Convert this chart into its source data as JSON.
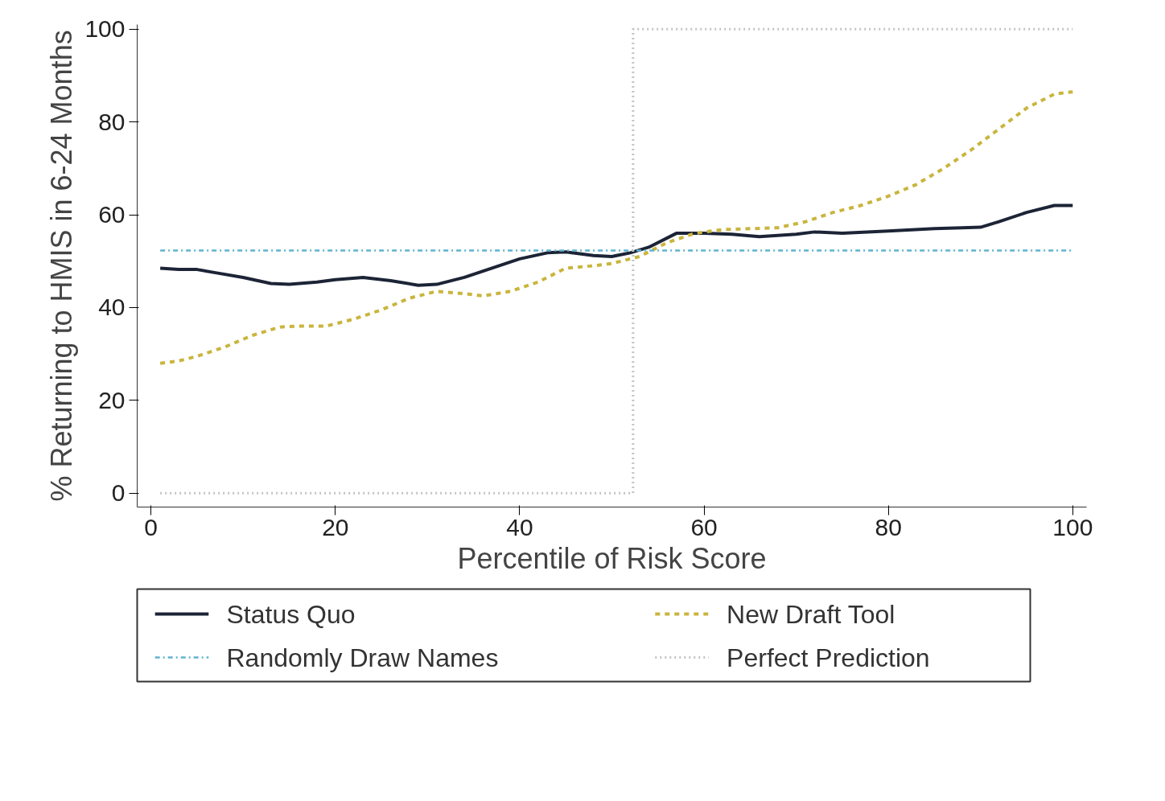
{
  "chart_data": {
    "type": "line",
    "xlabel": "Percentile of Risk Score",
    "ylabel": "% Returning to HMIS in 6-24 Months",
    "xlim": [
      -1.5,
      101.5
    ],
    "ylim": [
      -3,
      101
    ],
    "xticks": [
      0,
      20,
      40,
      60,
      80,
      100
    ],
    "yticks": [
      0,
      20,
      40,
      60,
      80,
      100
    ],
    "grid": false,
    "legend": "bottom",
    "marker": "none",
    "series": [
      {
        "name": "Status Quo",
        "color": "#1c2436",
        "line_style": "solid",
        "x": [
          1,
          3,
          5,
          7,
          10,
          13,
          15,
          18,
          20,
          23,
          26,
          29,
          31,
          34,
          37,
          40,
          43,
          45,
          48,
          50,
          52,
          54,
          57,
          60,
          63,
          66,
          70,
          72,
          75,
          80,
          85,
          88,
          90,
          92,
          95,
          98,
          100
        ],
        "values": [
          48.5,
          48.2,
          48.2,
          47.5,
          46.5,
          45.2,
          45,
          45.5,
          46,
          46.5,
          45.8,
          44.8,
          45,
          46.5,
          48.5,
          50.5,
          51.8,
          52,
          51.2,
          51,
          51.8,
          53,
          56,
          56,
          55.8,
          55.3,
          55.8,
          56.3,
          56,
          56.5,
          57,
          57.2,
          57.3,
          58.5,
          60.5,
          62,
          62
        ]
      },
      {
        "name": "New Draft Tool",
        "color": "#c9b53e",
        "line_style": "dashed",
        "x": [
          1,
          3,
          5,
          8,
          11,
          14,
          16,
          19,
          22,
          25,
          28,
          31,
          34,
          36,
          39,
          42,
          45,
          48,
          50,
          53,
          56,
          59,
          62,
          65,
          68,
          71,
          74,
          77,
          80,
          83,
          86,
          89,
          92,
          95,
          98,
          100
        ],
        "values": [
          28,
          28.5,
          29.5,
          31.5,
          34,
          35.8,
          36,
          36,
          37.5,
          39.5,
          42,
          43.5,
          43,
          42.5,
          43.5,
          45.5,
          48.5,
          49,
          49.5,
          51,
          54,
          56,
          56.8,
          57,
          57.2,
          58.5,
          60.5,
          62,
          64,
          66.5,
          70,
          74,
          78.5,
          83,
          86,
          86.5
        ]
      },
      {
        "name": "Randomly Draw Names",
        "color": "#5fb3cf",
        "line_style": "dashdot",
        "x": [
          1,
          100
        ],
        "values": [
          52.3,
          52.3
        ]
      },
      {
        "name": "Perfect Prediction",
        "color": "#c4c4c4",
        "line_style": "dotted",
        "x": [
          1,
          52.3,
          52.3,
          100
        ],
        "values": [
          0,
          0,
          100,
          100
        ]
      }
    ]
  }
}
